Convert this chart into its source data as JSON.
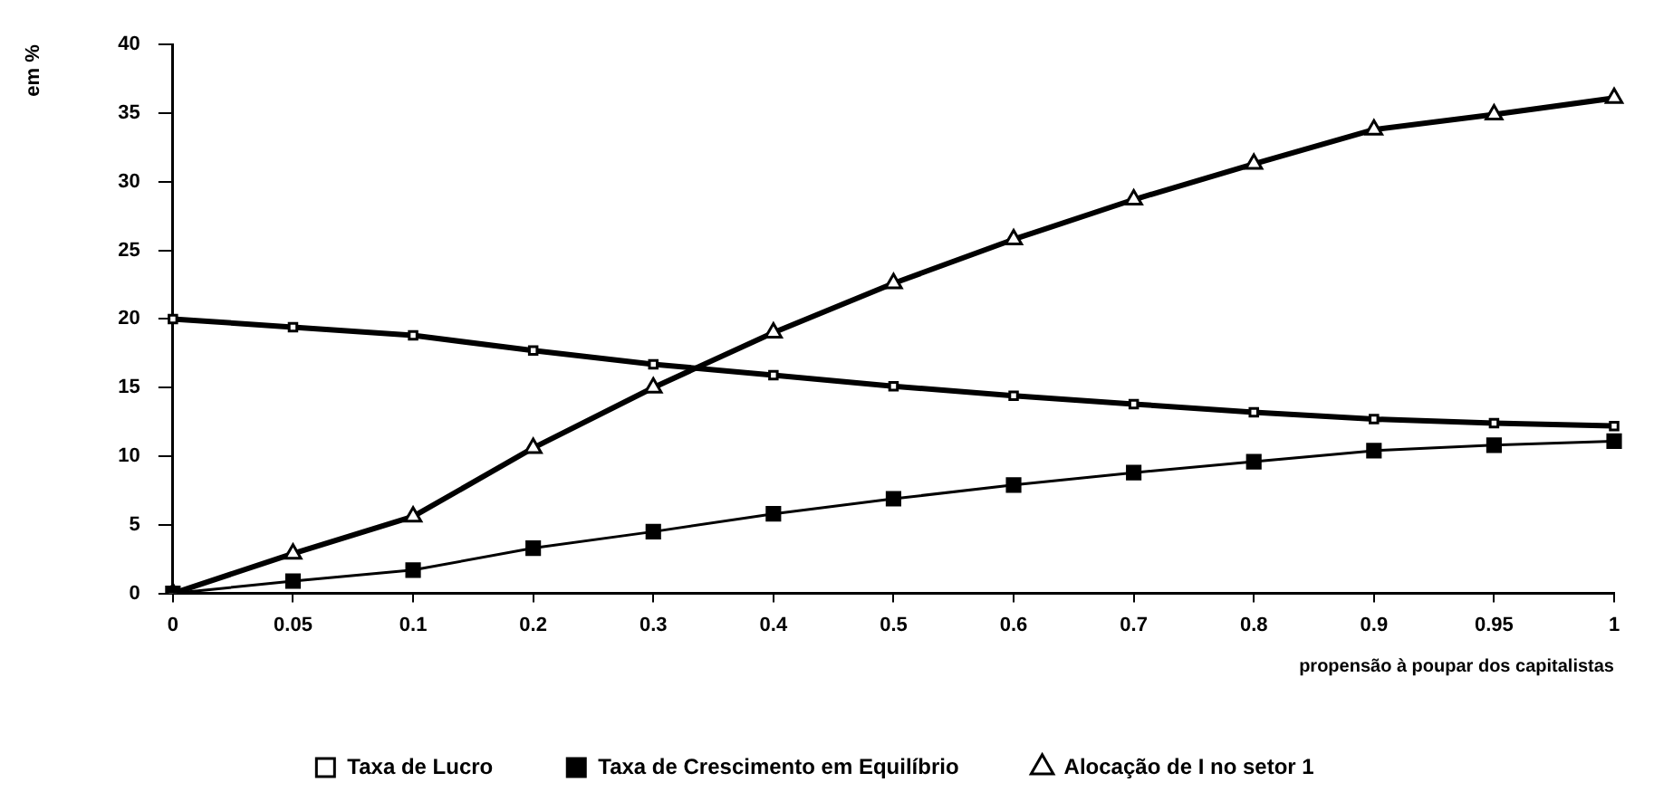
{
  "chart_data": {
    "type": "line",
    "xlabel": "propensão à poupar dos capitalistas",
    "ylabel": "em %",
    "categories": [
      "0",
      "0.05",
      "0.1",
      "0.2",
      "0.3",
      "0.4",
      "0.5",
      "0.6",
      "0.7",
      "0.8",
      "0.9",
      "0.95",
      "1"
    ],
    "series": [
      {
        "name": "Taxa de Lucro",
        "color": "#000000",
        "marker": "square",
        "values": [
          20,
          19.4,
          18.8,
          17.7,
          16.7,
          15.9,
          15.1,
          14.4,
          13.8,
          13.2,
          12.7,
          12.4,
          12.2
        ]
      },
      {
        "name": "Taxa de Crescimento em Equilíbrio",
        "color": "#000000",
        "marker": "square",
        "values": [
          0,
          0.9,
          1.7,
          3.3,
          4.5,
          5.8,
          6.9,
          7.9,
          8.8,
          9.6,
          10.4,
          10.8,
          11.1
        ]
      },
      {
        "name": "Alocação de I no setor 1",
        "color": "#000000",
        "marker": "triangle",
        "values": [
          0,
          2.9,
          5.6,
          10.6,
          15,
          19,
          22.6,
          25.8,
          28.7,
          31.3,
          33.8,
          34.9,
          36.1
        ]
      }
    ],
    "ylim": [
      0,
      40
    ],
    "yticks": [
      0,
      5,
      10,
      15,
      20,
      25,
      30,
      35,
      40
    ],
    "grid": false,
    "legend": "bottom",
    "line_style": "solid"
  }
}
